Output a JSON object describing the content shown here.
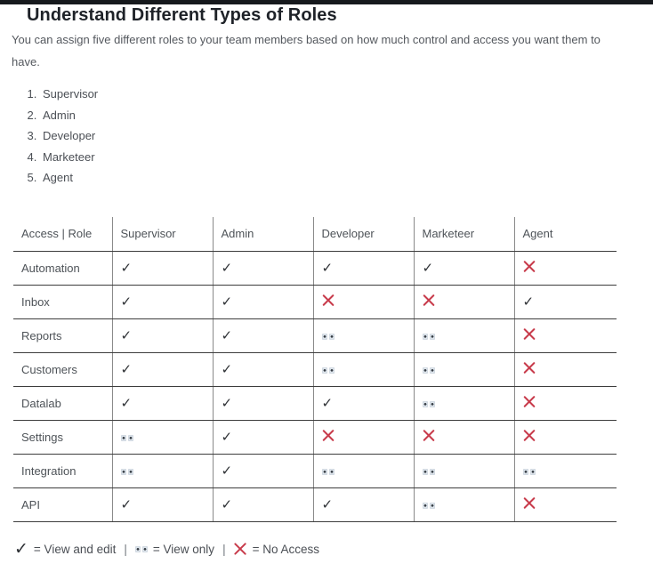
{
  "page": {
    "title": "Understand Different Types of Roles",
    "intro": "You can assign five different roles to your team members based on how much control and access you want them to have.",
    "roles_list": [
      "Supervisor",
      "Admin",
      "Developer",
      "Marketeer",
      "Agent"
    ]
  },
  "table": {
    "columns": [
      "Access | Role",
      "Supervisor",
      "Admin",
      "Developer",
      "Marketeer",
      "Agent"
    ],
    "rows": [
      {
        "feature": "Automation",
        "access": [
          "check",
          "check",
          "check",
          "check",
          "cross"
        ]
      },
      {
        "feature": "Inbox",
        "access": [
          "check",
          "check",
          "cross",
          "cross",
          "check"
        ]
      },
      {
        "feature": "Reports",
        "access": [
          "check",
          "check",
          "dots",
          "dots",
          "cross"
        ]
      },
      {
        "feature": "Customers",
        "access": [
          "check",
          "check",
          "dots",
          "dots",
          "cross"
        ]
      },
      {
        "feature": "Datalab",
        "access": [
          "check",
          "check",
          "check",
          "dots",
          "cross"
        ]
      },
      {
        "feature": "Settings",
        "access": [
          "dots",
          "check",
          "cross",
          "cross",
          "cross"
        ]
      },
      {
        "feature": "Integration",
        "access": [
          "dots",
          "check",
          "dots",
          "dots",
          "dots"
        ]
      },
      {
        "feature": "API",
        "access": [
          "check",
          "check",
          "check",
          "dots",
          "cross"
        ]
      }
    ]
  },
  "legend": {
    "separator": "|",
    "items": [
      {
        "icon": "check",
        "icon_name": "view-and-edit-icon",
        "label": "= View and edit"
      },
      {
        "icon": "dots",
        "icon_name": "view-only-icon",
        "label": "= View only"
      },
      {
        "icon": "cross",
        "icon_name": "no-access-icon",
        "label": "= No Access"
      }
    ]
  },
  "symbols": {
    "check_glyph": "✓",
    "check_meaning": "View and edit",
    "dots_meaning": "View only",
    "cross_meaning": "No Access"
  },
  "colors": {
    "accent_red": "#c83b4b",
    "check_dark": "#2e3135",
    "top_bar": "#16191d",
    "horizontal_border": "#3d3d3d",
    "vertical_border": "#8a8a8a"
  }
}
